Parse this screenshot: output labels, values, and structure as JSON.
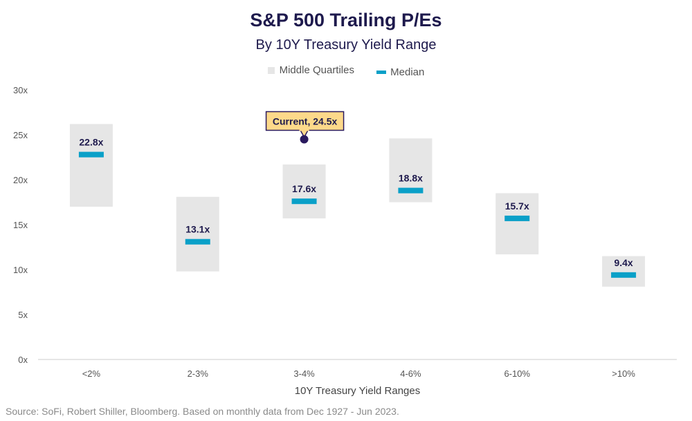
{
  "chart_data": {
    "type": "bar",
    "title": "S&P 500 Trailing P/Es",
    "subtitle": "By 10Y Treasury Yield Range",
    "xlabel": "10Y Treasury Yield Ranges",
    "ylabel": "",
    "ylim": [
      0,
      30
    ],
    "yticks": [
      0,
      5,
      10,
      15,
      20,
      25,
      30
    ],
    "ytick_labels": [
      "0x",
      "5x",
      "10x",
      "15x",
      "20x",
      "25x",
      "30x"
    ],
    "categories": [
      "<2%",
      "2-3%",
      "3-4%",
      "4-6%",
      "6-10%",
      ">10%"
    ],
    "legend": {
      "position": "top-center",
      "entries": [
        {
          "name": "Middle Quartiles",
          "color": "#e6e6e6"
        },
        {
          "name": "Median",
          "color": "#0aa0c8"
        }
      ]
    },
    "series": [
      {
        "name": "Middle Quartiles Low",
        "values": [
          17.0,
          9.8,
          15.7,
          17.5,
          11.7,
          8.1
        ]
      },
      {
        "name": "Middle Quartiles High",
        "values": [
          26.2,
          18.1,
          21.7,
          24.6,
          18.5,
          11.5
        ]
      },
      {
        "name": "Median",
        "values": [
          22.8,
          13.1,
          17.6,
          18.8,
          15.7,
          9.4
        ]
      }
    ],
    "median_labels": [
      "22.8x",
      "13.1x",
      "17.6x",
      "18.8x",
      "15.7x",
      "9.4x"
    ],
    "annotation": {
      "text": "Current, 24.5x",
      "category": "3-4%",
      "value": 24.5
    },
    "colors": {
      "quartile_box": "#e6e6e6",
      "median_bar": "#0aa0c8",
      "current_dot": "#2a1a5e",
      "callout_fill": "#fdd98a",
      "callout_border": "#2a1a5e",
      "axis_line": "#cccccc"
    }
  },
  "source": "Source: SoFi, Robert Shiller, Bloomberg. Based on monthly data from Dec 1927 - Jun 2023."
}
